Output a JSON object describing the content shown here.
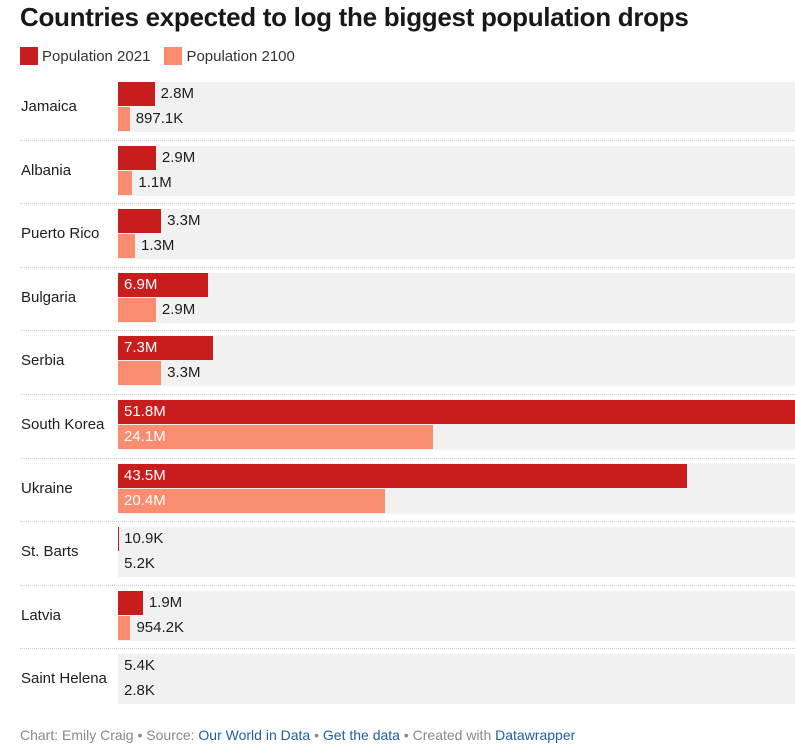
{
  "chart_data": {
    "type": "bar",
    "orientation": "horizontal",
    "title": "Countries expected to log the biggest population drops",
    "categories": [
      "Jamaica",
      "Albania",
      "Puerto Rico",
      "Bulgaria",
      "Serbia",
      "South Korea",
      "Ukraine",
      "St. Barts",
      "Latvia",
      "Saint Helena"
    ],
    "series": [
      {
        "name": "Population 2021",
        "color": "#c71e1d",
        "values": [
          2800000,
          2900000,
          3300000,
          6900000,
          7300000,
          51800000,
          43500000,
          10900,
          1900000,
          5400
        ],
        "labels": [
          "2.8M",
          "2.9M",
          "3.3M",
          "6.9M",
          "7.3M",
          "51.8M",
          "43.5M",
          "10.9K",
          "1.9M",
          "5.4K"
        ]
      },
      {
        "name": "Population 2100",
        "color": "#fa8c70",
        "values": [
          897100,
          1100000,
          1300000,
          2900000,
          3300000,
          24100000,
          20400000,
          5200,
          954200,
          2800
        ],
        "labels": [
          "897.1K",
          "1.1M",
          "1.3M",
          "2.9M",
          "3.3M",
          "24.1M",
          "20.4M",
          "5.2K",
          "954.2K",
          "2.8K"
        ]
      }
    ],
    "xlim": [
      0,
      51800000
    ],
    "grid": false,
    "legend_position": "top-left"
  },
  "footer": {
    "chart_prefix": "Chart: Emily Craig",
    "source_prefix": "Source:",
    "source_link": "Our World in Data",
    "get_data_link": "Get the data",
    "created_prefix": "Created with",
    "created_link": "Datawrapper",
    "separator": "•"
  }
}
